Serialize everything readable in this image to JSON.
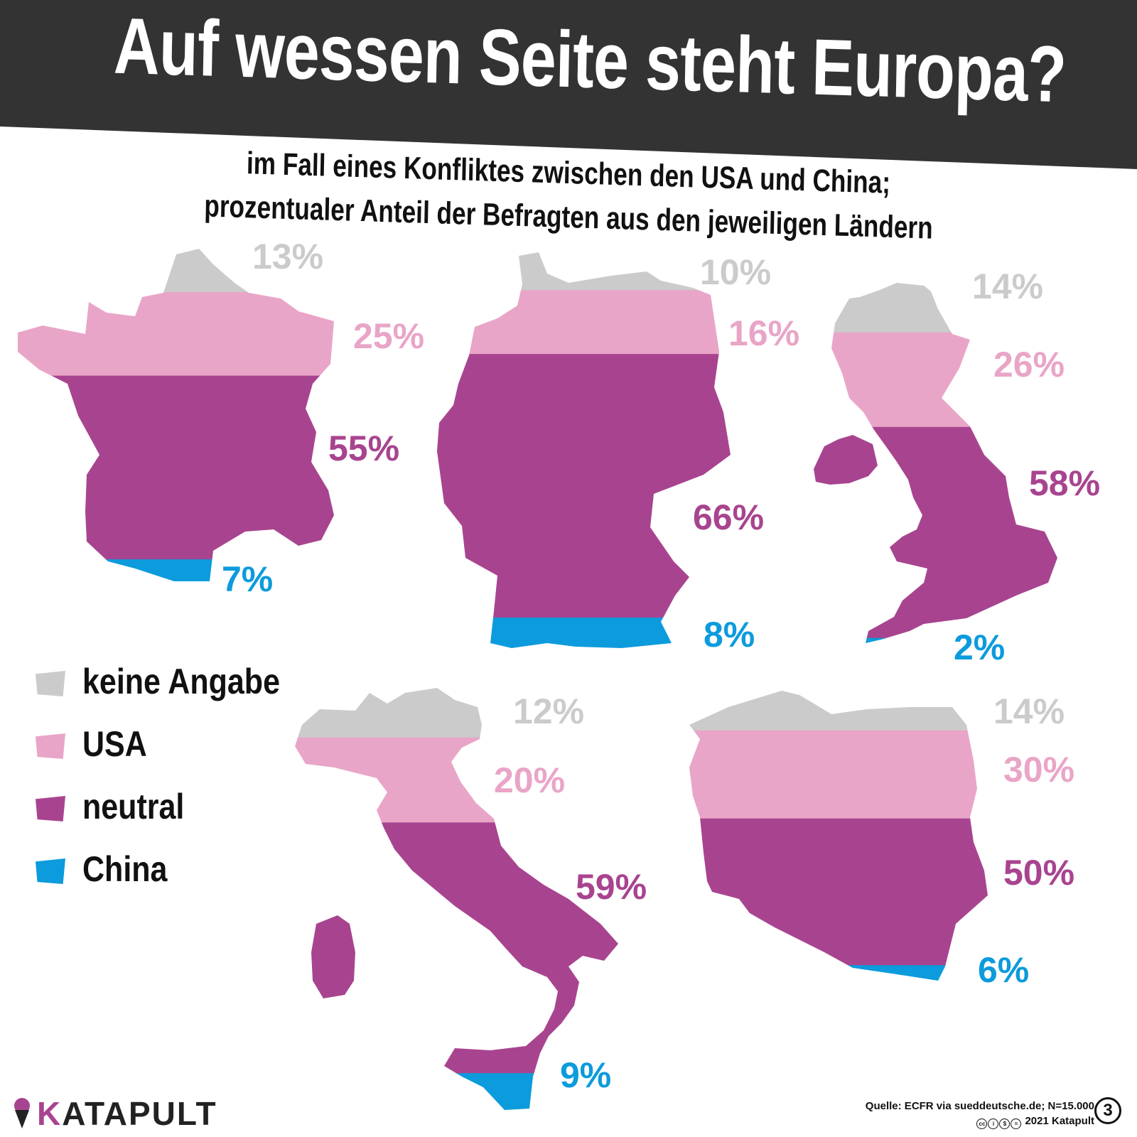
{
  "title": "Auf wessen Seite steht Europa?",
  "subtitle": {
    "line1": "im Fall eines Konfliktes zwischen den USA und China;",
    "line2": "prozentualer Anteil der Befragten aus den jeweiligen Ländern"
  },
  "colors": {
    "header_background": "#333333",
    "keine_angabe": "#cbcbcb",
    "usa": "#e9a5c7",
    "neutral": "#a8448f",
    "china": "#0c9bdc"
  },
  "legend": [
    {
      "key": "keine_angabe",
      "label": "keine Angabe"
    },
    {
      "key": "usa",
      "label": "USA"
    },
    {
      "key": "neutral",
      "label": "neutral"
    },
    {
      "key": "china",
      "label": "China"
    }
  ],
  "chart_data": {
    "type": "bar",
    "subtype": "100% stacked, shown as country silhouettes (Frankreich, Deutschland, Großbritannien, Italien, Polen)",
    "title": "Auf wessen Seite steht Europa?",
    "series_order": [
      "keine Angabe",
      "USA",
      "neutral",
      "China"
    ],
    "countries": [
      {
        "id": "france",
        "values": {
          "keine Angabe": 13,
          "USA": 25,
          "neutral": 55,
          "China": 7
        },
        "labels": {
          "keine Angabe": "13%",
          "USA": "25%",
          "neutral": "55%",
          "China": "7%"
        }
      },
      {
        "id": "germany",
        "values": {
          "keine Angabe": 10,
          "USA": 16,
          "neutral": 66,
          "China": 8
        },
        "labels": {
          "keine Angabe": "10%",
          "USA": "16%",
          "neutral": "66%",
          "China": "8%"
        }
      },
      {
        "id": "uk",
        "values": {
          "keine Angabe": 14,
          "USA": 26,
          "neutral": 58,
          "China": 2
        },
        "labels": {
          "keine Angabe": "14%",
          "USA": "26%",
          "neutral": "58%",
          "China": "2%"
        }
      },
      {
        "id": "italy",
        "values": {
          "keine Angabe": 12,
          "USA": 20,
          "neutral": 59,
          "China": 9
        },
        "labels": {
          "keine Angabe": "12%",
          "USA": "20%",
          "neutral": "59%",
          "China": "9%"
        }
      },
      {
        "id": "poland",
        "values": {
          "keine Angabe": 14,
          "USA": 30,
          "neutral": 50,
          "China": 6
        },
        "labels": {
          "keine Angabe": "14%",
          "USA": "30%",
          "neutral": "50%",
          "China": "6%"
        }
      }
    ]
  },
  "footer": {
    "brand_first": "K",
    "brand_rest": "ATAPULT",
    "source": "Quelle: ECFR via sueddeutsche.de; N=15.000",
    "copyright": "2021 Katapult",
    "badge": "3"
  }
}
